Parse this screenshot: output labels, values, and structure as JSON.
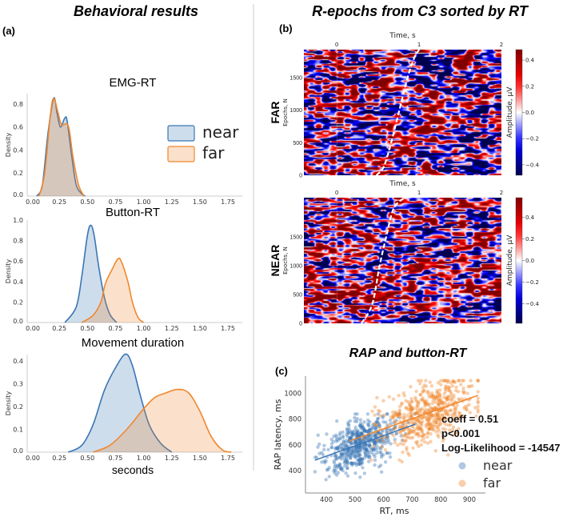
{
  "titles": {
    "left": "Behavioral results",
    "middle": "R-epochs from C3 sorted by RT",
    "scatter": "RAP and button-RT"
  },
  "panel_labels": {
    "a": "(a)",
    "b": "(b)",
    "c": "(c)"
  },
  "colors": {
    "near": "#3a76b5",
    "far": "#f0872e"
  },
  "chart_data": [
    {
      "type": "area",
      "title": "EMG-RT",
      "ylabel": "Density",
      "xlim": [
        0,
        1.8
      ],
      "ylim": [
        0,
        0.9
      ],
      "xticks": [
        "0.00",
        "0.25",
        "0.50",
        "0.75",
        "1.00",
        "1.25",
        "1.50",
        "1.75"
      ],
      "yticks": [
        "0.0",
        "0.2",
        "0.4",
        "0.6",
        "0.8"
      ],
      "legend": {
        "position": "right",
        "entries": [
          "near",
          "far"
        ]
      },
      "series": [
        {
          "name": "near",
          "x": [
            0.05,
            0.1,
            0.15,
            0.2,
            0.23,
            0.26,
            0.3,
            0.32,
            0.36,
            0.4,
            0.45,
            0.48
          ],
          "y": [
            0,
            0.1,
            0.55,
            0.85,
            0.72,
            0.6,
            0.68,
            0.65,
            0.35,
            0.1,
            0.02,
            0
          ]
        },
        {
          "name": "far",
          "x": [
            0.07,
            0.12,
            0.17,
            0.2,
            0.24,
            0.27,
            0.33,
            0.37,
            0.42,
            0.47
          ],
          "y": [
            0,
            0.2,
            0.7,
            0.85,
            0.72,
            0.62,
            0.61,
            0.35,
            0.1,
            0
          ]
        }
      ]
    },
    {
      "type": "area",
      "title": "Button-RT",
      "ylabel": "Density",
      "xlim": [
        0,
        1.8
      ],
      "ylim": [
        0,
        1.0
      ],
      "xticks": [
        "0.00",
        "0.25",
        "0.50",
        "0.75",
        "1.00",
        "1.25",
        "1.50",
        "1.75"
      ],
      "yticks": [
        "0.0",
        "0.2",
        "0.4",
        "0.6",
        "0.8",
        "1.0"
      ],
      "series": [
        {
          "name": "near",
          "x": [
            0.3,
            0.4,
            0.45,
            0.5,
            0.53,
            0.56,
            0.6,
            0.65,
            0.7,
            0.76
          ],
          "y": [
            0,
            0.15,
            0.45,
            0.85,
            0.95,
            0.85,
            0.55,
            0.25,
            0.08,
            0
          ]
        },
        {
          "name": "far",
          "x": [
            0.45,
            0.55,
            0.62,
            0.66,
            0.72,
            0.77,
            0.8,
            0.86,
            0.9,
            0.95,
            1.0
          ],
          "y": [
            0,
            0.07,
            0.2,
            0.38,
            0.52,
            0.62,
            0.6,
            0.4,
            0.2,
            0.05,
            0
          ]
        }
      ]
    },
    {
      "type": "area",
      "title": "Movement duration",
      "ylabel": "Density",
      "xlabel": "seconds",
      "xlim": [
        0,
        1.8
      ],
      "ylim": [
        0,
        0.45
      ],
      "xticks": [
        "0.00",
        "0.25",
        "0.50",
        "0.75",
        "1.00",
        "1.25",
        "1.50",
        "1.75"
      ],
      "yticks": [
        "0.0",
        "0.1",
        "0.2",
        "0.3",
        "0.4"
      ],
      "series": [
        {
          "name": "near",
          "x": [
            0.33,
            0.45,
            0.55,
            0.65,
            0.75,
            0.84,
            0.9,
            0.97,
            1.05,
            1.15,
            1.25
          ],
          "y": [
            0,
            0.03,
            0.12,
            0.27,
            0.37,
            0.43,
            0.38,
            0.25,
            0.12,
            0.04,
            0
          ]
        },
        {
          "name": "far",
          "x": [
            0.55,
            0.7,
            0.85,
            1.0,
            1.1,
            1.2,
            1.3,
            1.4,
            1.5,
            1.6,
            1.7,
            1.78
          ],
          "y": [
            0,
            0.03,
            0.1,
            0.19,
            0.24,
            0.26,
            0.275,
            0.26,
            0.18,
            0.07,
            0.01,
            0
          ]
        }
      ]
    },
    {
      "type": "heatmap",
      "row_label": "FAR",
      "xlabel": "Time, s",
      "ylabel": "Epochs, N",
      "xlim": [
        -0.4,
        2
      ],
      "ylim": [
        0,
        1930
      ],
      "xticks": [
        "0",
        "1",
        "2"
      ],
      "yticks": [
        "0",
        "500",
        "1000",
        "1500"
      ],
      "colorbar": {
        "label": "Amplitude, μV",
        "range": [
          -0.48,
          0.48
        ],
        "ticks": [
          "0.4",
          "0.2",
          "0.0",
          "−0.2",
          "−0.4"
        ],
        "colormap": "seismic"
      },
      "rt_curve": {
        "time_s": [
          0.48,
          0.57,
          0.66,
          0.76,
          0.86,
          0.94,
          1.0
        ],
        "epoch": [
          0,
          130,
          500,
          1000,
          1500,
          1800,
          1930
        ]
      }
    },
    {
      "type": "heatmap",
      "row_label": "NEAR",
      "xlabel": "Time, s",
      "ylabel": "Epochs, N",
      "xlim": [
        -0.4,
        2
      ],
      "ylim": [
        0,
        2180
      ],
      "xticks": [
        "0",
        "1",
        "2"
      ],
      "yticks": [
        "0",
        "500",
        "1000",
        "1500"
      ],
      "colorbar": {
        "label": "Amplitude, μV",
        "range": [
          -0.58,
          0.58
        ],
        "ticks": [
          "0.4",
          "0.2",
          "0.0",
          "−0.2",
          "−0.4"
        ],
        "colormap": "seismic"
      },
      "rt_curve": {
        "time_s": [
          0.3,
          0.43,
          0.52,
          0.6,
          0.69,
          0.82
        ],
        "epoch": [
          0,
          330,
          1000,
          1500,
          1990,
          2180
        ]
      }
    },
    {
      "type": "scatter",
      "title": "RAP and button-RT",
      "xlabel": "RT, ms",
      "ylabel": "RAP latency, ms",
      "xlim": [
        327,
        956
      ],
      "ylim": [
        225,
        1135
      ],
      "xticks": [
        "400",
        "500",
        "600",
        "700",
        "800",
        "900"
      ],
      "yticks": [
        "400",
        "600",
        "800",
        "1000"
      ],
      "annotation": [
        "coeff = 0.51",
        "p<0.001",
        "Log-Likelihood = -14547"
      ],
      "legend": {
        "position": "right",
        "entries": [
          "near",
          "far"
        ]
      },
      "series": [
        {
          "name": "near",
          "rt_range": [
            360,
            710
          ],
          "rap_range": [
            270,
            840
          ],
          "center": [
            520,
            610
          ],
          "fit": {
            "x": [
              360,
              710
            ],
            "y": [
              480,
              760
            ]
          }
        },
        {
          "name": "far",
          "rt_range": [
            480,
            930
          ],
          "rap_range": [
            460,
            1100
          ],
          "center": [
            750,
            850
          ],
          "fit": {
            "x": [
              480,
              930
            ],
            "y": [
              630,
              985
            ]
          }
        }
      ]
    }
  ]
}
